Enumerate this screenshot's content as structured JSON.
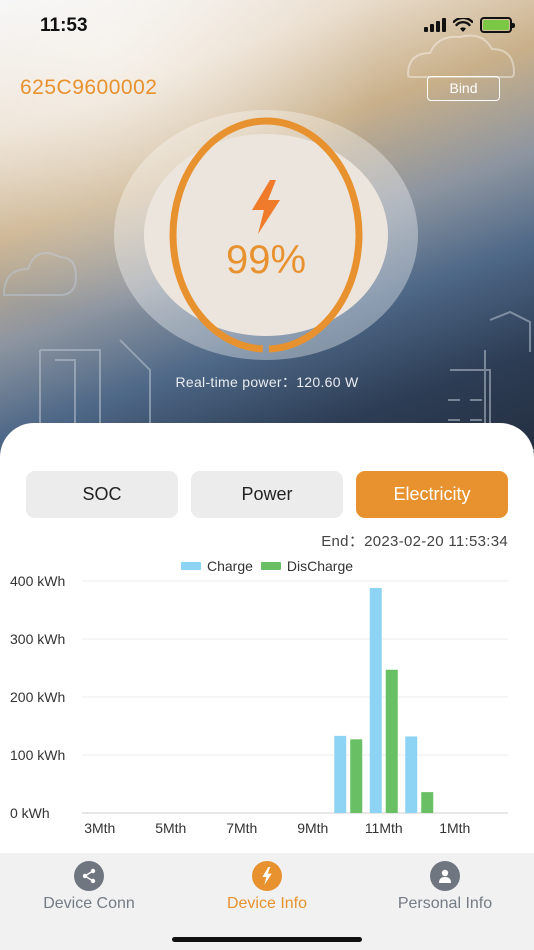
{
  "status_bar": {
    "time": "11:53"
  },
  "header": {
    "device_id": "625C9600002",
    "bind_label": "Bind"
  },
  "gauge": {
    "value": "99%",
    "level": 0.99,
    "icon": "lightning-bolt-icon"
  },
  "realtime": {
    "label": "Real-time power：",
    "value": "120.60 W"
  },
  "tabs": [
    {
      "label": "SOC",
      "active": false
    },
    {
      "label": "Power",
      "active": false
    },
    {
      "label": "Electricity",
      "active": true
    }
  ],
  "end": {
    "label": "End：",
    "value": "2023-02-20 11:53:34"
  },
  "colors": {
    "accent": "#e8922f",
    "charge": "#8dd3f3",
    "discharge": "#69bf63"
  },
  "chart_data": {
    "type": "bar",
    "categories": [
      "3Mth",
      "4Mth",
      "5Mth",
      "6Mth",
      "7Mth",
      "8Mth",
      "9Mth",
      "10Mth",
      "11Mth",
      "12Mth",
      "1Mth",
      "2Mth"
    ],
    "x_tick_labels": [
      "3Mth",
      "5Mth",
      "7Mth",
      "9Mth",
      "11Mth",
      "1Mth"
    ],
    "series": [
      {
        "name": "Charge",
        "values": [
          0,
          0,
          0,
          0,
          0,
          0,
          0,
          133,
          388,
          132,
          0,
          0
        ]
      },
      {
        "name": "DisCharge",
        "values": [
          0,
          0,
          0,
          0,
          0,
          0,
          0,
          127,
          247,
          36,
          0,
          0
        ]
      }
    ],
    "y_ticks": [
      "0 kWh",
      "100 kWh",
      "200 kWh",
      "300 kWh",
      "400 kWh"
    ],
    "ylim": [
      0,
      400
    ],
    "legend": "top-center",
    "grid": true
  },
  "nav": {
    "items": [
      {
        "label": "Device Conn",
        "icon": "share-icon",
        "active": false
      },
      {
        "label": "Device Info",
        "icon": "lightning-bolt-icon",
        "active": true
      },
      {
        "label": "Personal Info",
        "icon": "person-icon",
        "active": false
      }
    ]
  }
}
